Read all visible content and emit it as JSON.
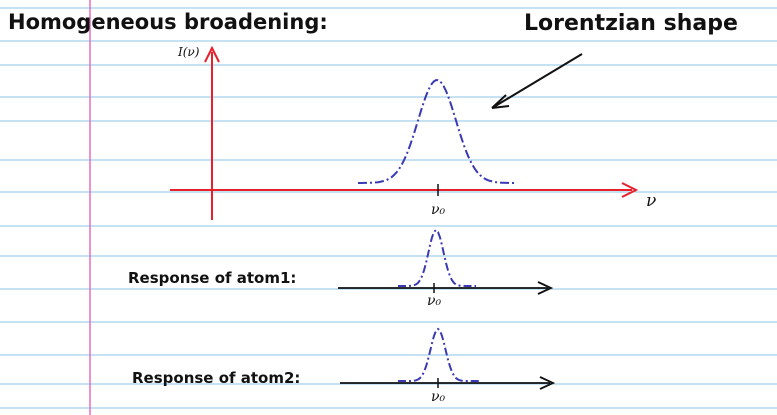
{
  "title": "Homogeneous broadening:",
  "annotation": "Lorentzian shape",
  "main_axis": {
    "y_label": "I(ν)",
    "x_label": "ν",
    "center_label": "ν₀"
  },
  "atom1": {
    "label": "Response of atom1:",
    "center_label": "ν₀"
  },
  "atom2": {
    "label": "Response of atom2:",
    "center_label": "ν₀"
  },
  "colors": {
    "paper": "#ffffff",
    "rule_line": "#8ec3e6",
    "margin_line": "#e070c0",
    "main_axis": "#e8202a",
    "curve": "#3a3ab4",
    "ink": "#111111"
  }
}
